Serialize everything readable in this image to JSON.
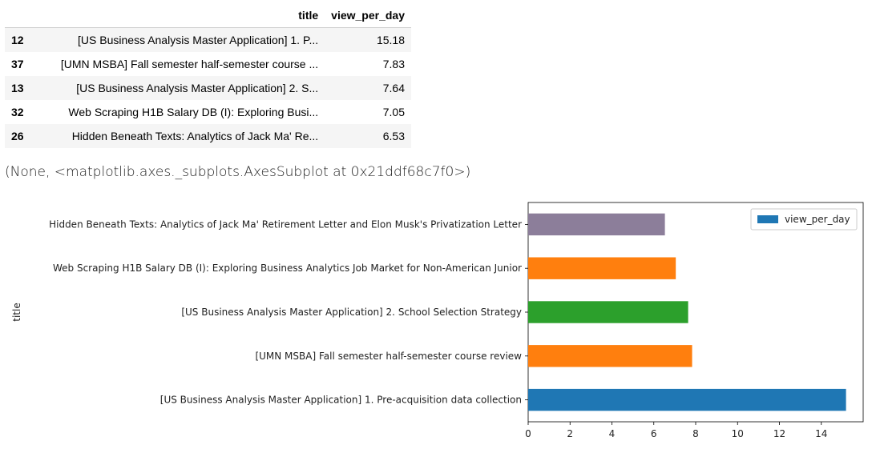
{
  "table": {
    "headers": [
      "",
      "title",
      "view_per_day"
    ],
    "rows": [
      {
        "index": "12",
        "title": "[US Business Analysis Master Application] 1. P...",
        "view_per_day": "15.18"
      },
      {
        "index": "37",
        "title": "[UMN MSBA] Fall semester half-semester course ...",
        "view_per_day": "7.83"
      },
      {
        "index": "13",
        "title": "[US Business Analysis Master Application] 2. S...",
        "view_per_day": "7.64"
      },
      {
        "index": "32",
        "title": "Web Scraping H1B Salary DB (I): Exploring Busi...",
        "view_per_day": "7.05"
      },
      {
        "index": "26",
        "title": "Hidden Beneath Texts: Analytics of Jack Ma' Re...",
        "view_per_day": "6.53"
      }
    ]
  },
  "output_repr": "(None, <matplotlib.axes._subplots.AxesSubplot at 0x21ddf68c7f0>)",
  "chart_data": {
    "type": "bar",
    "orientation": "horizontal",
    "ylabel": "title",
    "xlabel": "",
    "xlim": [
      0,
      16
    ],
    "xticks": [
      0,
      2,
      4,
      6,
      8,
      10,
      12,
      14
    ],
    "legend": {
      "label": "view_per_day",
      "placement": "top-right",
      "color": "#1f77b4"
    },
    "categories": [
      "[US Business Analysis Master Application] 1. Pre-acquisition data collection",
      "[UMN MSBA] Fall semester half-semester course review",
      "[US Business Analysis Master Application] 2. School Selection Strategy",
      "Web Scraping H1B Salary DB (I): Exploring Business Analytics Job Market for Non-American Junior",
      "Hidden Beneath Texts: Analytics of Jack Ma' Retirement Letter and Elon Musk's Privatization Letter"
    ],
    "values": [
      15.18,
      7.83,
      7.64,
      7.05,
      6.53
    ],
    "colors": [
      "#1f77b4",
      "#ff7f0e",
      "#2ca02c",
      "#ff7f0e",
      "#8c7e9a"
    ],
    "grid": false
  }
}
